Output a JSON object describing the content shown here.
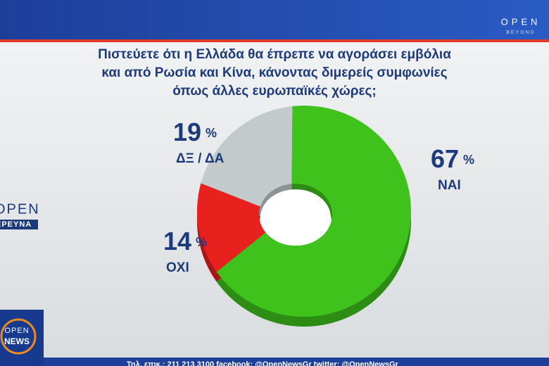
{
  "chart_data": {
    "type": "donut",
    "title_lines": [
      "Πιστεύετε ότι η Ελλάδα  θα έπρεπε να αγοράσει εμβόλια",
      "και από Ρωσία και Κίνα, κάνοντας διμερείς συμφωνίες",
      "όπως άλλες ευρωπαϊκές χώρες;"
    ],
    "categories": [
      "ΝΑΙ",
      "ΟΧΙ",
      "ΔΞ / ΔΑ"
    ],
    "values": [
      67,
      14,
      19
    ],
    "unit": "%",
    "colors": [
      "#3fc21c",
      "#e8201e",
      "#c3cacc"
    ]
  },
  "branding": {
    "top_logo": "OPEN",
    "top_logo_sub": "BEYOND",
    "side_logo": "OPEN",
    "side_logo_sub": "ΕΡΕΥΝΑ",
    "corner_logo_top": "OPEN",
    "corner_logo_bottom": "NEWS",
    "ticker": "Τηλ. επικ.: 211 213 3100 facebook: @OpenNewsGr twitter: @OpenNewsGr"
  }
}
